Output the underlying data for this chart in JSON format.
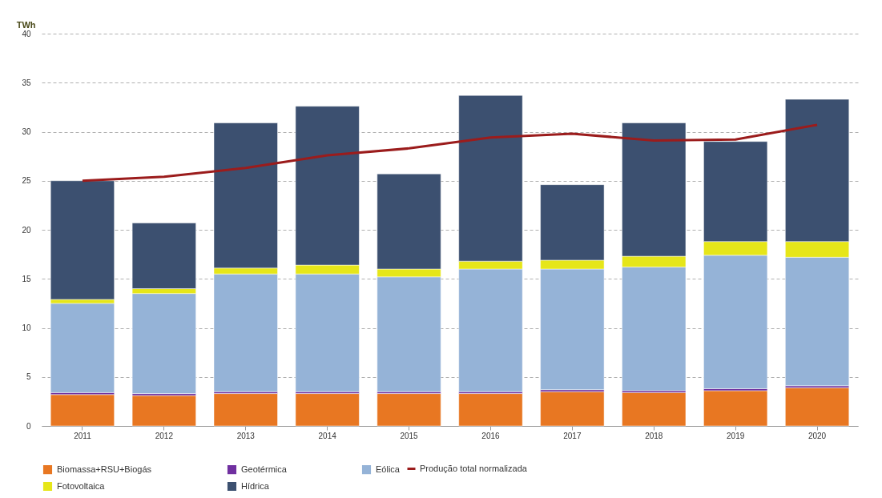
{
  "chart_data": {
    "type": "bar",
    "stacked": true,
    "ylabel": "TWh",
    "categories": [
      "2011",
      "2012",
      "2013",
      "2014",
      "2015",
      "2016",
      "2017",
      "2018",
      "2019",
      "2020"
    ],
    "series": [
      {
        "name": "Biomassa+RSU+Biogás",
        "color": "#e87722",
        "values": [
          3.2,
          3.1,
          3.3,
          3.3,
          3.3,
          3.3,
          3.5,
          3.4,
          3.6,
          3.9
        ]
      },
      {
        "name": "Geotérmica",
        "color": "#7030a0",
        "values": [
          0.2,
          0.2,
          0.2,
          0.2,
          0.2,
          0.2,
          0.2,
          0.2,
          0.2,
          0.2
        ]
      },
      {
        "name": "Eólica",
        "color": "#95b3d7",
        "values": [
          9.1,
          10.2,
          12.0,
          12.0,
          11.7,
          12.5,
          12.3,
          12.6,
          13.6,
          13.1
        ]
      },
      {
        "name": "Fotovoltaica",
        "color": "#e6e619",
        "values": [
          0.4,
          0.5,
          0.6,
          0.9,
          0.8,
          0.8,
          0.9,
          1.1,
          1.4,
          1.6
        ]
      },
      {
        "name": "Hídrica",
        "color": "#3c5070",
        "values": [
          12.1,
          6.7,
          14.8,
          16.2,
          9.7,
          16.9,
          7.7,
          13.6,
          10.2,
          14.5
        ]
      },
      {
        "name": "Produção total normalizada",
        "type": "line",
        "color": "#9b1c1c",
        "values": [
          25.0,
          25.4,
          26.3,
          27.6,
          28.3,
          29.4,
          29.8,
          29.1,
          29.2,
          30.7
        ]
      }
    ],
    "ylim": [
      0,
      40
    ],
    "yticks": [
      0,
      5,
      10,
      15,
      20,
      25,
      30,
      35,
      40
    ],
    "grid": "y",
    "legend": "bottom",
    "marker": "none",
    "line_style": "solid"
  }
}
